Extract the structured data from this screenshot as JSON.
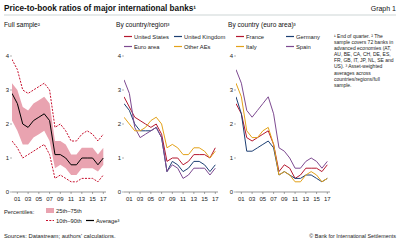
{
  "title": "Price-to-book ratios of major international banks¹",
  "graph_label": "Graph 1",
  "footnotes": [
    "¹ End of quarter.",
    "² The sample covers 72 banks in advanced economies (AT, AU, BE, CA, CH, DE, ES, FR, GB, IT, JP, NL, SE and US).",
    "³ Asset-weighted averages across countries/regions/full sample."
  ],
  "sources": "Sources: Datastream; authors' calculations.",
  "copyright": "© Bank for International Settlements",
  "chart_data": [
    {
      "type": "line",
      "title": "Full sample²",
      "legend": "bottom-left",
      "legend_title": "Percentiles:",
      "x": [
        2000,
        2001,
        2002,
        2003,
        2004,
        2005,
        2006,
        2007,
        2008,
        2009,
        2010,
        2011,
        2012,
        2013,
        2014,
        2015,
        2016,
        2017
      ],
      "xlim": [
        2000,
        2017.5
      ],
      "xticks": [
        {
          "value": 2001,
          "label": "01"
        },
        {
          "value": 2003,
          "label": "03"
        },
        {
          "value": 2005,
          "label": "05"
        },
        {
          "value": 2007,
          "label": "07"
        },
        {
          "value": 2009,
          "label": "09"
        },
        {
          "value": 2011,
          "label": "11"
        },
        {
          "value": 2013,
          "label": "13"
        },
        {
          "value": 2015,
          "label": "15"
        },
        {
          "value": 2017,
          "label": "17"
        }
      ],
      "ylim": [
        0,
        4
      ],
      "yticks": [
        0,
        1,
        2,
        3,
        4
      ],
      "grid": false,
      "series": [
        {
          "name": "25th–75th",
          "type": "band",
          "color": "#e9a3b0",
          "values": [
            3.2,
            3.0,
            2.5,
            2.4,
            2.6,
            2.7,
            2.8,
            2.6,
            1.5,
            1.5,
            1.4,
            1.1,
            1.1,
            1.3,
            1.3,
            1.3,
            1.1,
            1.3
          ],
          "lower": [
            2.1,
            1.8,
            1.4,
            1.4,
            1.6,
            1.7,
            1.8,
            1.5,
            0.7,
            0.8,
            0.7,
            0.5,
            0.5,
            0.7,
            0.7,
            0.7,
            0.6,
            0.8
          ]
        },
        {
          "name": "10th–90th",
          "type": "line",
          "line_style": "dashed",
          "color": "#c8102e",
          "values": [
            3.9,
            3.6,
            3.0,
            2.9,
            3.0,
            3.1,
            3.2,
            3.0,
            1.9,
            2.0,
            1.8,
            1.5,
            1.5,
            1.7,
            1.8,
            1.7,
            1.5,
            1.7
          ],
          "lower": [
            1.5,
            1.3,
            1.0,
            1.1,
            1.2,
            1.3,
            1.4,
            1.1,
            0.4,
            0.5,
            0.4,
            0.3,
            0.3,
            0.4,
            0.4,
            0.4,
            0.3,
            0.5
          ]
        },
        {
          "name": "Average³",
          "type": "line",
          "line_style": "solid",
          "color": "#000000",
          "values": [
            2.9,
            2.6,
            2.0,
            1.9,
            2.1,
            2.2,
            2.3,
            2.1,
            1.1,
            1.1,
            1.0,
            0.8,
            0.8,
            1.0,
            1.0,
            1.0,
            0.8,
            1.0
          ]
        }
      ]
    },
    {
      "type": "line",
      "title": "By country/region³",
      "legend": "top-left",
      "x": [
        2000,
        2001,
        2002,
        2003,
        2004,
        2005,
        2006,
        2007,
        2008,
        2009,
        2010,
        2011,
        2012,
        2013,
        2014,
        2015,
        2016,
        2017
      ],
      "xlim": [
        2000,
        2017.5
      ],
      "xticks": [
        {
          "value": 2001,
          "label": "01"
        },
        {
          "value": 2003,
          "label": "03"
        },
        {
          "value": 2005,
          "label": "05"
        },
        {
          "value": 2007,
          "label": "07"
        },
        {
          "value": 2009,
          "label": "09"
        },
        {
          "value": 2011,
          "label": "11"
        },
        {
          "value": 2013,
          "label": "13"
        },
        {
          "value": 2015,
          "label": "15"
        },
        {
          "value": 2017,
          "label": "17"
        }
      ],
      "ylim": [
        0,
        4
      ],
      "yticks": [
        0,
        1,
        2,
        3,
        4
      ],
      "grid": false,
      "series": [
        {
          "name": "United States",
          "color": "#b5182f",
          "values": [
            2.8,
            2.5,
            2.2,
            2.1,
            2.0,
            1.9,
            2.0,
            1.7,
            0.9,
            1.0,
            1.0,
            0.8,
            0.9,
            1.1,
            1.1,
            1.1,
            1.0,
            1.3
          ]
        },
        {
          "name": "United Kingdom",
          "color": "#1d3f73",
          "values": [
            2.6,
            2.4,
            2.0,
            1.8,
            1.8,
            1.8,
            1.9,
            1.6,
            0.6,
            0.9,
            0.8,
            0.6,
            0.7,
            0.9,
            0.9,
            0.8,
            0.6,
            0.8
          ]
        },
        {
          "name": "Euro area",
          "color": "#7d4a91",
          "values": [
            3.3,
            2.9,
            1.9,
            1.6,
            1.7,
            1.8,
            1.9,
            1.6,
            0.6,
            0.8,
            0.7,
            0.4,
            0.5,
            0.7,
            0.7,
            0.7,
            0.5,
            0.7
          ]
        },
        {
          "name": "Other AEs",
          "color": "#e3a21a",
          "values": [
            2.2,
            2.0,
            1.8,
            1.8,
            1.9,
            2.1,
            2.2,
            2.0,
            1.3,
            1.4,
            1.3,
            1.1,
            1.1,
            1.3,
            1.3,
            1.2,
            1.0,
            1.2
          ]
        }
      ]
    },
    {
      "type": "line",
      "title": "By country (euro area)³",
      "legend": "top-left",
      "x": [
        2000,
        2001,
        2002,
        2003,
        2004,
        2005,
        2006,
        2007,
        2008,
        2009,
        2010,
        2011,
        2012,
        2013,
        2014,
        2015,
        2016,
        2017
      ],
      "xlim": [
        2000,
        2017.5
      ],
      "xticks": [
        {
          "value": 2001,
          "label": "01"
        },
        {
          "value": 2003,
          "label": "03"
        },
        {
          "value": 2005,
          "label": "05"
        },
        {
          "value": 2007,
          "label": "07"
        },
        {
          "value": 2009,
          "label": "09"
        },
        {
          "value": 2011,
          "label": "11"
        },
        {
          "value": 2013,
          "label": "13"
        },
        {
          "value": 2015,
          "label": "15"
        },
        {
          "value": 2017,
          "label": "17"
        }
      ],
      "ylim": [
        0,
        4
      ],
      "yticks": [
        0,
        1,
        2,
        3,
        4
      ],
      "grid": false,
      "series": [
        {
          "name": "France",
          "color": "#b5182f",
          "values": [
            2.6,
            2.3,
            1.6,
            1.5,
            1.6,
            1.7,
            1.8,
            1.4,
            0.6,
            0.8,
            0.7,
            0.4,
            0.5,
            0.7,
            0.7,
            0.7,
            0.6,
            0.8
          ]
        },
        {
          "name": "Germany",
          "color": "#1d3f73",
          "values": [
            2.8,
            2.3,
            1.2,
            1.2,
            1.3,
            1.4,
            1.5,
            1.3,
            0.5,
            0.6,
            0.5,
            0.4,
            0.4,
            0.5,
            0.5,
            0.4,
            0.3,
            0.4
          ]
        },
        {
          "name": "Italy",
          "color": "#e3a21a",
          "values": [
            3.2,
            2.8,
            1.8,
            1.6,
            1.6,
            1.8,
            1.9,
            1.4,
            0.5,
            0.6,
            0.5,
            0.3,
            0.3,
            0.5,
            0.6,
            0.5,
            0.3,
            0.4
          ]
        },
        {
          "name": "Spain",
          "color": "#7d4a91",
          "values": [
            3.6,
            3.2,
            2.4,
            2.2,
            2.4,
            2.6,
            2.8,
            2.3,
            1.3,
            1.2,
            1.0,
            0.7,
            0.7,
            0.9,
            1.0,
            0.9,
            0.7,
            0.9
          ]
        }
      ]
    }
  ]
}
